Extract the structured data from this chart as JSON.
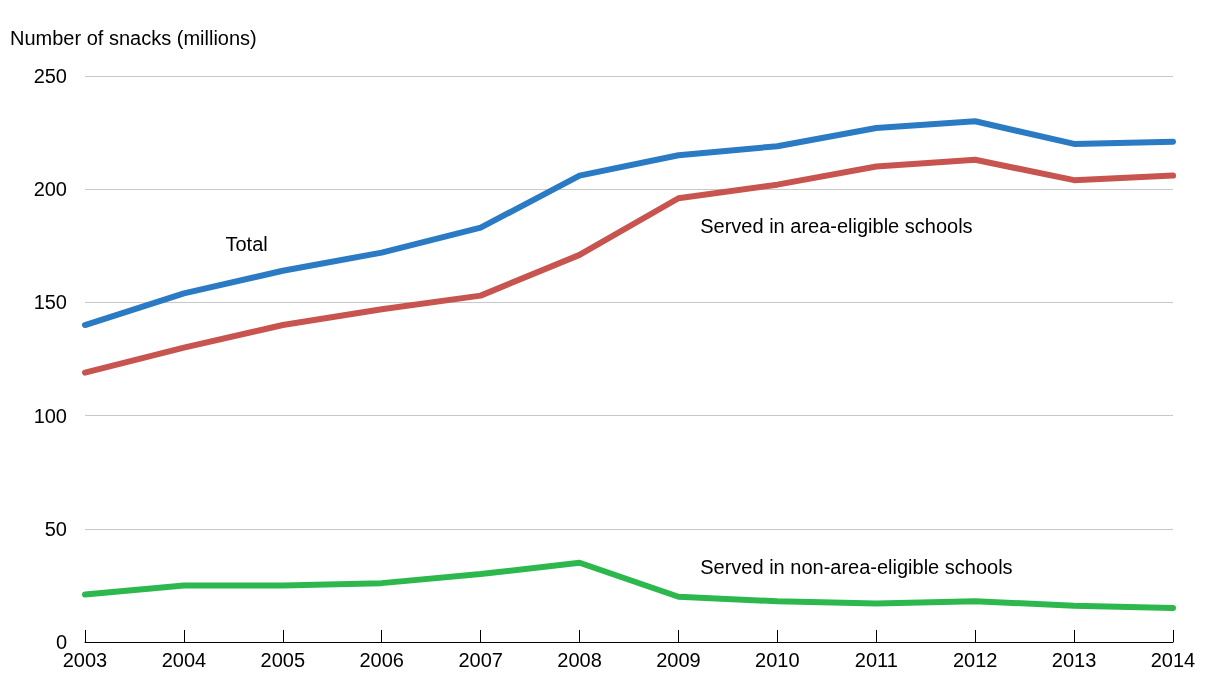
{
  "chart_data": {
    "type": "line",
    "ylabel": "Number of snacks (millions)",
    "categories": [
      "2003",
      "2004",
      "2005",
      "2006",
      "2007",
      "2008",
      "2009",
      "2010",
      "2011",
      "2012",
      "2013",
      "2014"
    ],
    "series": [
      {
        "name": "Total",
        "color": "#2a7bc4",
        "values": [
          140,
          154,
          164,
          172,
          183,
          206,
          215,
          219,
          227,
          230,
          220,
          221
        ]
      },
      {
        "name": "Served in area-eligible schools",
        "color": "#c85450",
        "values": [
          119,
          130,
          140,
          147,
          153,
          171,
          196,
          202,
          210,
          213,
          204,
          206
        ]
      },
      {
        "name": "Served in non-area-eligible schools",
        "color": "#2db84d",
        "values": [
          21,
          25,
          25,
          26,
          30,
          35,
          20,
          18,
          17,
          18,
          16,
          15
        ]
      }
    ],
    "ylim": [
      0,
      250
    ],
    "yticks": [
      0,
      50,
      100,
      150,
      200,
      250
    ],
    "grid": "y",
    "legend": false,
    "marker": "none",
    "line_style": "solid"
  }
}
